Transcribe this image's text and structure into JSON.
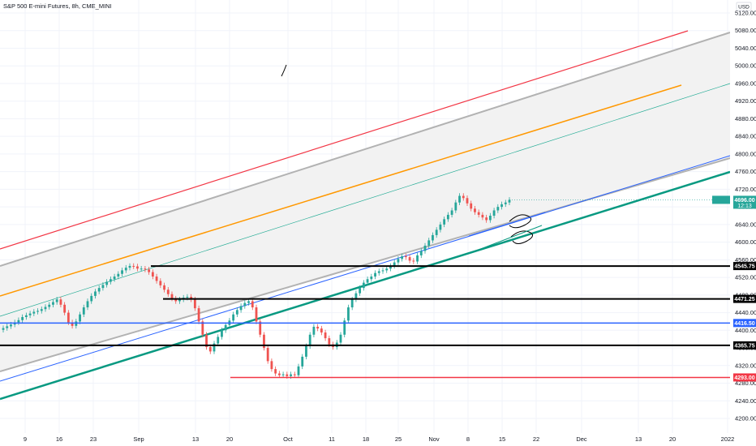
{
  "chart_data": {
    "type": "candlestick",
    "title": "S&P 500 E-mini Futures, 8h, CME_MINI",
    "currency": "USD",
    "price_axis": {
      "ticks": [
        5120,
        5080,
        5040,
        5000,
        4960,
        4920,
        4880,
        4840,
        4800,
        4760,
        4720,
        4680,
        4640,
        4600,
        4560,
        4520,
        4480,
        4440,
        4400,
        4360,
        4320,
        4280,
        4240,
        4200
      ],
      "range": [
        4173,
        5155
      ]
    },
    "time_axis": {
      "ticks": [
        "9",
        "16",
        "23",
        "Sep",
        "13",
        "20",
        "Oct",
        "11",
        "18",
        "25",
        "Nov",
        "8",
        "15",
        "22",
        "Dec",
        "13",
        "20",
        "2022"
      ]
    },
    "last_price": {
      "label": "4696.00",
      "sub": "12:13",
      "value": 4696,
      "color": "#26a69a"
    },
    "horizontal_levels": [
      {
        "label": "4545.75",
        "value": 4545.75,
        "color": "#000000"
      },
      {
        "label": "4471.25",
        "value": 4471.25,
        "color": "#000000"
      },
      {
        "label": "4416.50",
        "value": 4416.5,
        "color": "#2962ff"
      },
      {
        "label": "4365.75",
        "value": 4365.75,
        "color": "#000000"
      },
      {
        "label": "4293.00",
        "value": 4293.0,
        "color": "#f23645"
      }
    ],
    "channel": {
      "fill_color": "#f2f2f2",
      "upper_color": "#b2b2b2",
      "red_color": "#f23645",
      "orange_color": "#ff9800",
      "teal_color": "#22ab94",
      "blue_color": "#2962ff",
      "green_color": "#089981"
    },
    "candle_colors": {
      "up": "#26a69a",
      "down": "#ef5350"
    },
    "closes": [
      4405,
      4409,
      4413,
      4418,
      4423,
      4430,
      4434,
      4438,
      4442,
      4444,
      4448,
      4453,
      4458,
      4464,
      4470,
      4458,
      4440,
      4418,
      4410,
      4420,
      4436,
      4452,
      4466,
      4478,
      4488,
      4496,
      4503,
      4510,
      4516,
      4522,
      4528,
      4536,
      4542,
      4546,
      4545,
      4540,
      4540,
      4538,
      4532,
      4522,
      4512,
      4502,
      4492,
      4482,
      4472,
      4466,
      4470,
      4474,
      4476,
      4470,
      4450,
      4420,
      4390,
      4362,
      4352,
      4370,
      4385,
      4400,
      4412,
      4422,
      4436,
      4446,
      4455,
      4462,
      4466,
      4452,
      4420,
      4390,
      4360,
      4330,
      4312,
      4302,
      4298,
      4300,
      4296,
      4300,
      4298,
      4318,
      4340,
      4364,
      4390,
      4408,
      4404,
      4395,
      4382,
      4368,
      4362,
      4372,
      4390,
      4422,
      4452,
      4470,
      4484,
      4496,
      4508,
      4516,
      4522,
      4530,
      4534,
      4536,
      4540,
      4546,
      4554,
      4562,
      4568,
      4566,
      4558,
      4556,
      4570,
      4580,
      4592,
      4604,
      4616,
      4628,
      4640,
      4652,
      4662,
      4672,
      4690,
      4705,
      4700,
      4688,
      4676,
      4668,
      4662,
      4656,
      4650,
      4660,
      4672,
      4680,
      4686,
      4690,
      4696
    ]
  }
}
